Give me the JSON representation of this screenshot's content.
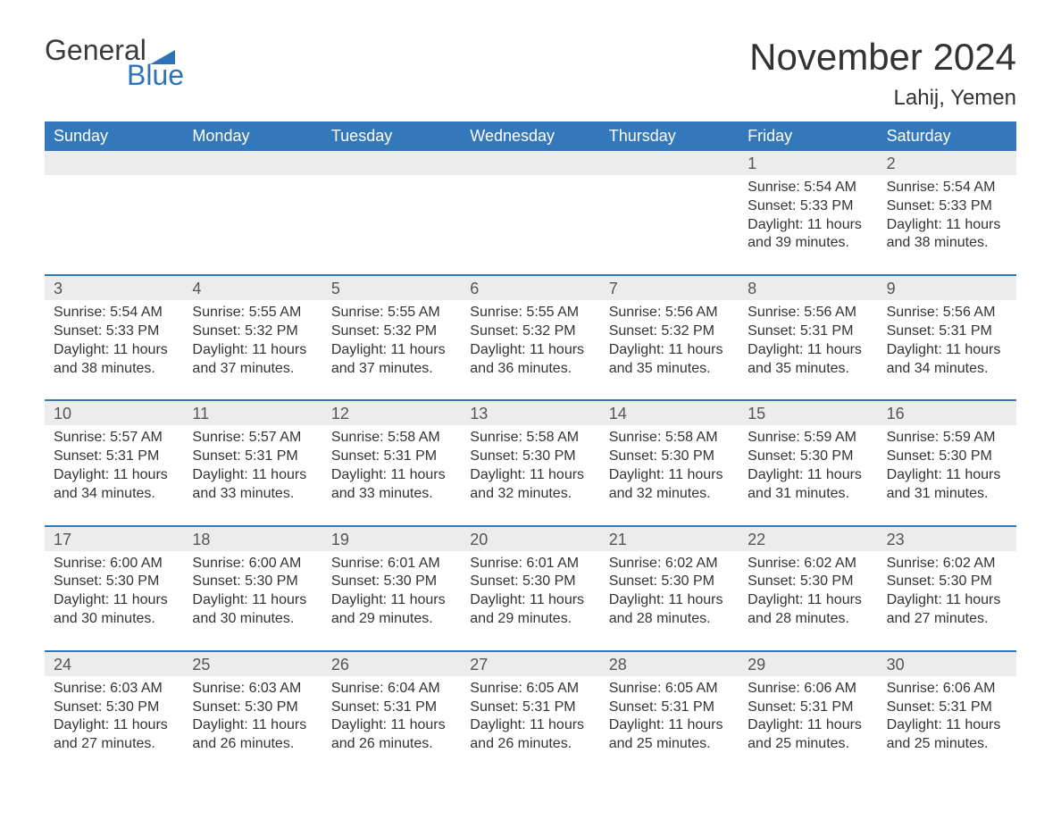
{
  "logo": {
    "general": "General",
    "blue": "Blue",
    "flag_color": "#2f73b7"
  },
  "title": "November 2024",
  "location": "Lahij, Yemen",
  "colors": {
    "header_bg": "#3478bc",
    "header_text": "#ffffff",
    "datebar_bg": "#ececec",
    "week_border": "#3478bc",
    "text": "#333333",
    "logo_blue": "#2f73b7",
    "logo_gray": "#3a3a3a"
  },
  "day_names": [
    "Sunday",
    "Monday",
    "Tuesday",
    "Wednesday",
    "Thursday",
    "Friday",
    "Saturday"
  ],
  "weeks": [
    {
      "dates": [
        "",
        "",
        "",
        "",
        "",
        "1",
        "2"
      ],
      "cells": [
        null,
        null,
        null,
        null,
        null,
        {
          "sunrise": "5:54 AM",
          "sunset": "5:33 PM",
          "daylight": "11 hours and 39 minutes."
        },
        {
          "sunrise": "5:54 AM",
          "sunset": "5:33 PM",
          "daylight": "11 hours and 38 minutes."
        }
      ]
    },
    {
      "dates": [
        "3",
        "4",
        "5",
        "6",
        "7",
        "8",
        "9"
      ],
      "cells": [
        {
          "sunrise": "5:54 AM",
          "sunset": "5:33 PM",
          "daylight": "11 hours and 38 minutes."
        },
        {
          "sunrise": "5:55 AM",
          "sunset": "5:32 PM",
          "daylight": "11 hours and 37 minutes."
        },
        {
          "sunrise": "5:55 AM",
          "sunset": "5:32 PM",
          "daylight": "11 hours and 37 minutes."
        },
        {
          "sunrise": "5:55 AM",
          "sunset": "5:32 PM",
          "daylight": "11 hours and 36 minutes."
        },
        {
          "sunrise": "5:56 AM",
          "sunset": "5:32 PM",
          "daylight": "11 hours and 35 minutes."
        },
        {
          "sunrise": "5:56 AM",
          "sunset": "5:31 PM",
          "daylight": "11 hours and 35 minutes."
        },
        {
          "sunrise": "5:56 AM",
          "sunset": "5:31 PM",
          "daylight": "11 hours and 34 minutes."
        }
      ]
    },
    {
      "dates": [
        "10",
        "11",
        "12",
        "13",
        "14",
        "15",
        "16"
      ],
      "cells": [
        {
          "sunrise": "5:57 AM",
          "sunset": "5:31 PM",
          "daylight": "11 hours and 34 minutes."
        },
        {
          "sunrise": "5:57 AM",
          "sunset": "5:31 PM",
          "daylight": "11 hours and 33 minutes."
        },
        {
          "sunrise": "5:58 AM",
          "sunset": "5:31 PM",
          "daylight": "11 hours and 33 minutes."
        },
        {
          "sunrise": "5:58 AM",
          "sunset": "5:30 PM",
          "daylight": "11 hours and 32 minutes."
        },
        {
          "sunrise": "5:58 AM",
          "sunset": "5:30 PM",
          "daylight": "11 hours and 32 minutes."
        },
        {
          "sunrise": "5:59 AM",
          "sunset": "5:30 PM",
          "daylight": "11 hours and 31 minutes."
        },
        {
          "sunrise": "5:59 AM",
          "sunset": "5:30 PM",
          "daylight": "11 hours and 31 minutes."
        }
      ]
    },
    {
      "dates": [
        "17",
        "18",
        "19",
        "20",
        "21",
        "22",
        "23"
      ],
      "cells": [
        {
          "sunrise": "6:00 AM",
          "sunset": "5:30 PM",
          "daylight": "11 hours and 30 minutes."
        },
        {
          "sunrise": "6:00 AM",
          "sunset": "5:30 PM",
          "daylight": "11 hours and 30 minutes."
        },
        {
          "sunrise": "6:01 AM",
          "sunset": "5:30 PM",
          "daylight": "11 hours and 29 minutes."
        },
        {
          "sunrise": "6:01 AM",
          "sunset": "5:30 PM",
          "daylight": "11 hours and 29 minutes."
        },
        {
          "sunrise": "6:02 AM",
          "sunset": "5:30 PM",
          "daylight": "11 hours and 28 minutes."
        },
        {
          "sunrise": "6:02 AM",
          "sunset": "5:30 PM",
          "daylight": "11 hours and 28 minutes."
        },
        {
          "sunrise": "6:02 AM",
          "sunset": "5:30 PM",
          "daylight": "11 hours and 27 minutes."
        }
      ]
    },
    {
      "dates": [
        "24",
        "25",
        "26",
        "27",
        "28",
        "29",
        "30"
      ],
      "cells": [
        {
          "sunrise": "6:03 AM",
          "sunset": "5:30 PM",
          "daylight": "11 hours and 27 minutes."
        },
        {
          "sunrise": "6:03 AM",
          "sunset": "5:30 PM",
          "daylight": "11 hours and 26 minutes."
        },
        {
          "sunrise": "6:04 AM",
          "sunset": "5:31 PM",
          "daylight": "11 hours and 26 minutes."
        },
        {
          "sunrise": "6:05 AM",
          "sunset": "5:31 PM",
          "daylight": "11 hours and 26 minutes."
        },
        {
          "sunrise": "6:05 AM",
          "sunset": "5:31 PM",
          "daylight": "11 hours and 25 minutes."
        },
        {
          "sunrise": "6:06 AM",
          "sunset": "5:31 PM",
          "daylight": "11 hours and 25 minutes."
        },
        {
          "sunrise": "6:06 AM",
          "sunset": "5:31 PM",
          "daylight": "11 hours and 25 minutes."
        }
      ]
    }
  ],
  "labels": {
    "sunrise": "Sunrise: ",
    "sunset": "Sunset: ",
    "daylight": "Daylight: "
  }
}
